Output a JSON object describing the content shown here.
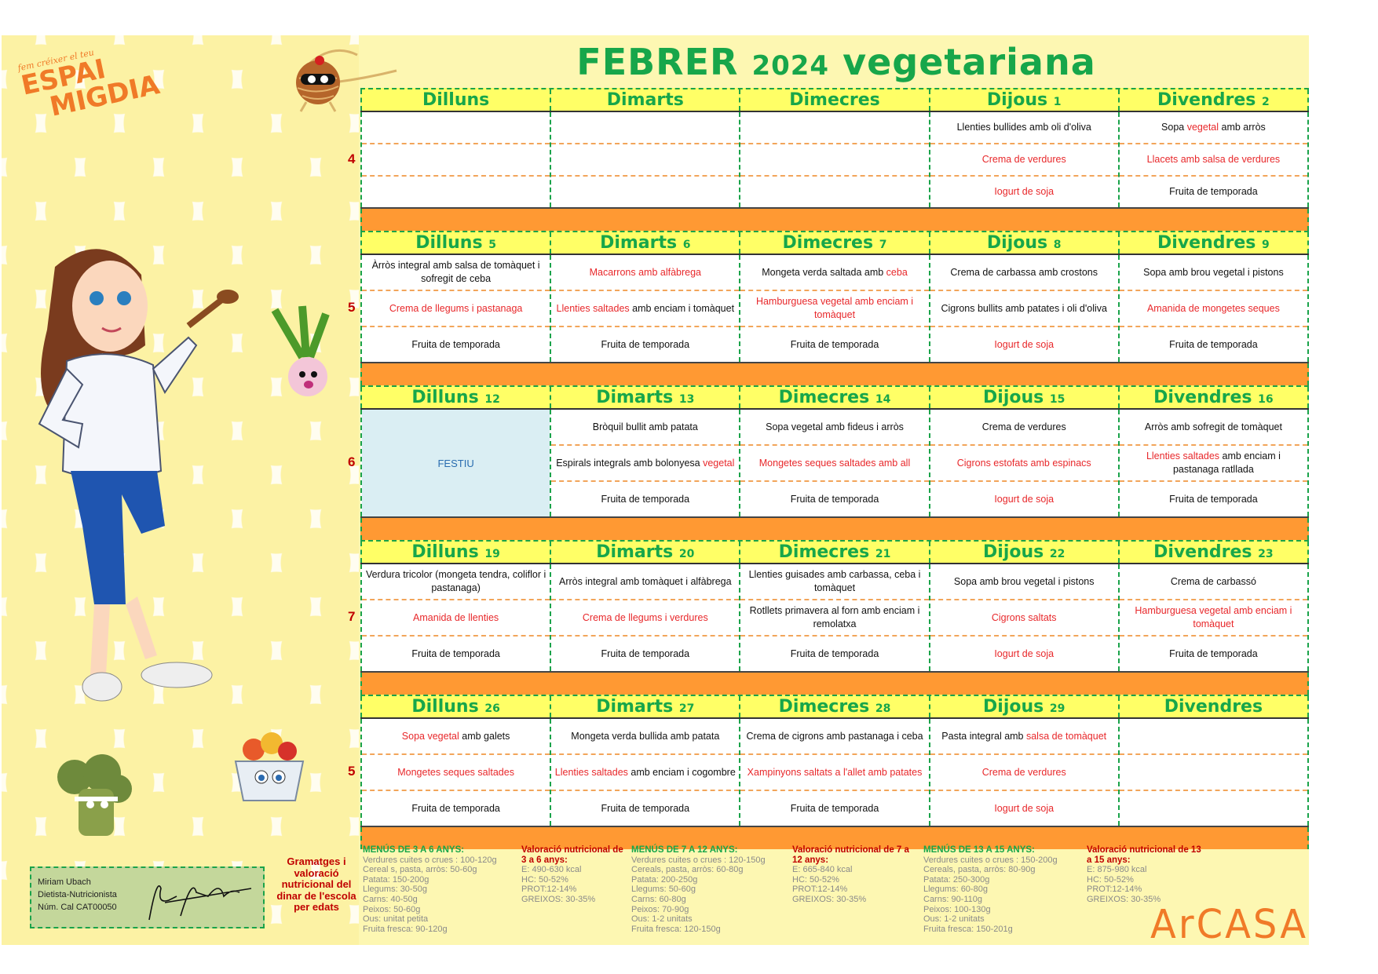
{
  "logo": {
    "tagline": "fem créixer el teu",
    "line1": "ESPAI",
    "line2": "MIGDIA"
  },
  "title": {
    "month": "FEBRER",
    "year": "2024",
    "type": "vegetariana"
  },
  "colors": {
    "green": "#17a64a",
    "header_bg": "#ffff66",
    "separator": "#ff9933",
    "red_dish": "#e8282b",
    "week_number": "#c00000",
    "holiday_bg": "#daeef3"
  },
  "weeks": [
    {
      "num": "4",
      "days": [
        {
          "name": "Dilluns",
          "date": ""
        },
        {
          "name": "Dimarts",
          "date": ""
        },
        {
          "name": "Dimecres",
          "date": ""
        },
        {
          "name": "Dijous",
          "date": "1"
        },
        {
          "name": "Divendres",
          "date": "2"
        }
      ],
      "cells": [
        [
          [],
          [],
          []
        ],
        [
          [],
          [],
          []
        ],
        [
          [],
          [],
          []
        ],
        [
          [
            {
              "t": "Llenties bullides amb oli d'oliva"
            }
          ],
          [
            {
              "t": "Crema de verdures",
              "red": true
            }
          ],
          [
            {
              "t": "Iogurt de soja",
              "red": true
            }
          ]
        ],
        [
          [
            {
              "t": "Sopa "
            },
            {
              "t": "vegetal",
              "red": true
            },
            {
              "t": " amb arròs"
            }
          ],
          [
            {
              "t": "Llacets amb salsa de verdures",
              "red": true
            }
          ],
          [
            {
              "t": "Fruita de temporada"
            }
          ]
        ]
      ]
    },
    {
      "num": "5",
      "days": [
        {
          "name": "Dilluns",
          "date": "5"
        },
        {
          "name": "Dimarts",
          "date": "6"
        },
        {
          "name": "Dimecres",
          "date": "7"
        },
        {
          "name": "Dijous",
          "date": "8"
        },
        {
          "name": "Divendres",
          "date": "9"
        }
      ],
      "cells": [
        [
          [
            {
              "t": "Àrròs integral amb salsa de tomàquet i sofregit de ceba"
            }
          ],
          [
            {
              "t": "Crema de llegums i pastanaga",
              "red": true
            }
          ],
          [
            {
              "t": "Fruita de temporada"
            }
          ]
        ],
        [
          [
            {
              "t": "Macarrons amb alfàbrega",
              "red": true
            }
          ],
          [
            {
              "t": "Llenties saltades",
              "red": true
            },
            {
              "t": " amb enciam i tomàquet"
            }
          ],
          [
            {
              "t": "Fruita de temporada"
            }
          ]
        ],
        [
          [
            {
              "t": "Mongeta verda saltada amb "
            },
            {
              "t": "ceba",
              "red": true
            }
          ],
          [
            {
              "t": "Hamburguesa vegetal amb enciam i tomàquet",
              "red": true
            }
          ],
          [
            {
              "t": "Fruita de temporada"
            }
          ]
        ],
        [
          [
            {
              "t": "Crema de carbassa amb crostons"
            }
          ],
          [
            {
              "t": "Cigrons bullits amb patates i oli d'oliva"
            }
          ],
          [
            {
              "t": "Iogurt de soja",
              "red": true
            }
          ]
        ],
        [
          [
            {
              "t": "Sopa amb brou vegetal i pistons"
            }
          ],
          [
            {
              "t": "Amanida de mongetes seques",
              "red": true
            }
          ],
          [
            {
              "t": "Fruita de temporada"
            }
          ]
        ]
      ]
    },
    {
      "num": "6",
      "days": [
        {
          "name": "Dilluns",
          "date": "12"
        },
        {
          "name": "Dimarts",
          "date": "13"
        },
        {
          "name": "Dimecres",
          "date": "14"
        },
        {
          "name": "Dijous",
          "date": "15"
        },
        {
          "name": "Divendres",
          "date": "16"
        }
      ],
      "holiday": {
        "day_index": 0,
        "label": "FESTIU"
      },
      "cells": [
        [],
        [
          [
            {
              "t": "Bròquil bullit amb patata"
            }
          ],
          [
            {
              "t": "Espirals integrals amb bolonyesa "
            },
            {
              "t": "vegetal",
              "red": true
            }
          ],
          [
            {
              "t": "Fruita de temporada"
            }
          ]
        ],
        [
          [
            {
              "t": "Sopa vegetal amb fideus i arròs"
            }
          ],
          [
            {
              "t": "Mongetes seques saltades amb all",
              "red": true
            }
          ],
          [
            {
              "t": "Fruita de temporada"
            }
          ]
        ],
        [
          [
            {
              "t": "Crema de verdures"
            }
          ],
          [
            {
              "t": "Cigrons estofats amb espinacs",
              "red": true
            }
          ],
          [
            {
              "t": "Iogurt de soja",
              "red": true
            }
          ]
        ],
        [
          [
            {
              "t": "Arròs amb sofregit de tomàquet"
            }
          ],
          [
            {
              "t": "Llenties saltades",
              "red": true
            },
            {
              "t": " amb enciam i pastanaga ratllada"
            }
          ],
          [
            {
              "t": "Fruita de temporada"
            }
          ]
        ]
      ]
    },
    {
      "num": "7",
      "days": [
        {
          "name": "Dilluns",
          "date": "19"
        },
        {
          "name": "Dimarts",
          "date": "20"
        },
        {
          "name": "Dimecres",
          "date": "21"
        },
        {
          "name": "Dijous",
          "date": "22"
        },
        {
          "name": "Divendres",
          "date": "23"
        }
      ],
      "cells": [
        [
          [
            {
              "t": "Verdura tricolor (mongeta tendra, coliflor i pastanaga)"
            }
          ],
          [
            {
              "t": "Amanida de llenties",
              "red": true
            }
          ],
          [
            {
              "t": "Fruita de temporada"
            }
          ]
        ],
        [
          [
            {
              "t": "Arròs integral amb tomàquet i alfàbrega"
            }
          ],
          [
            {
              "t": "Crema de llegums i verdures",
              "red": true
            }
          ],
          [
            {
              "t": "Fruita de temporada"
            }
          ]
        ],
        [
          [
            {
              "t": "Llenties guisades amb carbassa, ceba i tomàquet"
            }
          ],
          [
            {
              "t": "Rotllets primavera al forn amb enciam i remolatxa"
            }
          ],
          [
            {
              "t": "Fruita de temporada"
            }
          ]
        ],
        [
          [
            {
              "t": "Sopa amb brou vegetal i pistons"
            }
          ],
          [
            {
              "t": "Cigrons saltats",
              "red": true
            }
          ],
          [
            {
              "t": "Iogurt de soja",
              "red": true
            }
          ]
        ],
        [
          [
            {
              "t": "Crema de carbassó"
            }
          ],
          [
            {
              "t": "Hamburguesa vegetal amb enciam i tomàquet",
              "red": true
            }
          ],
          [
            {
              "t": "Fruita de temporada"
            }
          ]
        ]
      ]
    },
    {
      "num": "5",
      "days": [
        {
          "name": "Dilluns",
          "date": "26"
        },
        {
          "name": "Dimarts",
          "date": "27"
        },
        {
          "name": "Dimecres",
          "date": "28"
        },
        {
          "name": "Dijous",
          "date": "29"
        },
        {
          "name": "Divendres",
          "date": ""
        }
      ],
      "cells": [
        [
          [
            {
              "t": "Sopa vegetal",
              "red": true
            },
            {
              "t": " amb galets"
            }
          ],
          [
            {
              "t": "Mongetes seques saltades",
              "red": true
            }
          ],
          [
            {
              "t": "Fruita de temporada"
            }
          ]
        ],
        [
          [
            {
              "t": "Mongeta verda bullida amb patata"
            }
          ],
          [
            {
              "t": "Llenties saltades",
              "red": true
            },
            {
              "t": " amb enciam i cogombre"
            }
          ],
          [
            {
              "t": "Fruita de temporada"
            }
          ]
        ],
        [
          [
            {
              "t": "Crema de cigrons amb pastanaga i ceba"
            }
          ],
          [
            {
              "t": "Xampinyons saltats a l'allet amb patates",
              "red": true
            }
          ],
          [
            {
              "t": "Fruita de temporada"
            }
          ]
        ],
        [
          [
            {
              "t": "Pasta integral amb "
            },
            {
              "t": "salsa de tomàquet",
              "red": true
            }
          ],
          [
            {
              "t": "Crema  de verdures",
              "red": true
            }
          ],
          [
            {
              "t": "Iogurt de soja",
              "red": true
            }
          ]
        ],
        [
          [],
          [],
          []
        ]
      ]
    }
  ],
  "signature": {
    "name": "Miriam Ubach",
    "role": "Dietista-Nutricionista",
    "license": "Núm. Cal CAT00050"
  },
  "grammages_title": "Gramatges i valoració nutricional del dinar de l'escola per edats",
  "nutrition": [
    {
      "title": "MENÚS DE 3 A 6 ANYS:",
      "lines": [
        "Verdures cuites o crues : 100-120g",
        "Cereal s, pasta, arròs: 50-60g",
        "Patata: 150-200g",
        "Llegums: 30-50g",
        "Carns: 40-50g",
        "Peixos: 50-60g",
        "Ous: unitat petita",
        "Fruita fresca: 90-120g"
      ]
    },
    {
      "title": "Valoració nutricional de 3 a 6 anys:",
      "lines": [
        "E: 490-630 kcal",
        "HC: 50-52%",
        "PROT:12-14%",
        "GREIXOS: 30-35%"
      ]
    },
    {
      "title": "MENÚS DE 7 A 12 ANYS:",
      "lines": [
        "Verdures cuites o crues : 120-150g",
        "Cereals, pasta, arròs: 60-80g",
        "Patata: 200-250g",
        "Llegums: 50-60g",
        "Carns: 60-80g",
        "Peixos: 70-90g",
        "Ous: 1-2 unitats",
        "Fruita fresca: 120-150g"
      ]
    },
    {
      "title": "Valoració nutricional de 7 a 12 anys:",
      "lines": [
        "E: 665-840 kcal",
        "HC: 50-52%",
        "PROT:12-14%",
        "GREIXOS: 30-35%"
      ]
    },
    {
      "title": "MENÚS DE 13 A 15 ANYS:",
      "lines": [
        "Verdures cuites o crues : 150-200g",
        "Cereals, pasta, arròs: 80-90g",
        "Patata: 250-300g",
        "Llegums: 60-80g",
        "Carns: 90-110g",
        "Peixos: 100-130g",
        "Ous: 1-2 unitats",
        "Fruita fresca: 150-201g"
      ]
    },
    {
      "title": "Valoració nutricional de 13 a 15 anys:",
      "lines": [
        "E: 875-980 kcal",
        "HC: 50-52%",
        "PROT:12-14%",
        "GREIXOS: 30-35%"
      ]
    }
  ],
  "brand": "ArCASA"
}
